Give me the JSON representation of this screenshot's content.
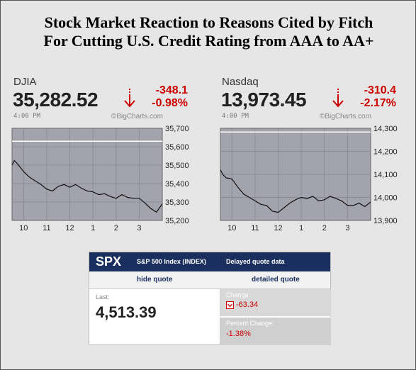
{
  "title_line1": "Stock Market Reaction to Reasons Cited by Fitch",
  "title_line2": "For Cutting U.S. Credit Rating from AAA to AA+",
  "colors": {
    "down": "#cc0000",
    "chart_bg": "#a3a3ad",
    "spx_header": "#1b2f5e"
  },
  "djia": {
    "name": "DJIA",
    "value": "35,282.52",
    "change": "-348.1",
    "pct_change": "-0.98%",
    "time_label": "4:00 PM",
    "credit": "©BigCharts.com"
  },
  "nasdaq": {
    "name": "Nasdaq",
    "value": "13,973.45",
    "change": "-310.4",
    "pct_change": "-2.17%",
    "time_label": "4:00 PM",
    "credit": "©BigCharts.com"
  },
  "chart_data": [
    {
      "type": "line",
      "series_for": "DJIA",
      "x_ticks": [
        "10",
        "11",
        "12",
        "1",
        "2",
        "3"
      ],
      "y_ticks": [
        "35,700",
        "35,600",
        "35,500",
        "35,400",
        "35,300",
        "35,200"
      ],
      "ylim": [
        35200,
        35700
      ],
      "reference_line": 35630,
      "x": [
        9.5,
        9.6,
        9.75,
        10.0,
        10.25,
        10.5,
        10.75,
        11.0,
        11.25,
        11.5,
        11.75,
        12.0,
        12.25,
        12.5,
        12.75,
        13.0,
        13.25,
        13.5,
        13.75,
        14.0,
        14.25,
        14.5,
        14.75,
        15.0,
        15.25,
        15.5,
        15.75,
        16.0
      ],
      "values": [
        35500,
        35525,
        35505,
        35465,
        35435,
        35415,
        35395,
        35370,
        35360,
        35385,
        35395,
        35380,
        35395,
        35375,
        35360,
        35355,
        35340,
        35345,
        35330,
        35320,
        35340,
        35325,
        35320,
        35320,
        35295,
        35265,
        35245,
        35290
      ]
    },
    {
      "type": "line",
      "series_for": "Nasdaq",
      "x_ticks": [
        "10",
        "11",
        "12",
        "1",
        "2",
        "3"
      ],
      "y_ticks": [
        "14,300",
        "14,200",
        "14,100",
        "14,000",
        "13,900"
      ],
      "ylim": [
        13900,
        14300
      ],
      "reference_line": 14284,
      "x": [
        9.5,
        9.6,
        9.75,
        10.0,
        10.25,
        10.5,
        10.75,
        11.0,
        11.25,
        11.5,
        11.75,
        12.0,
        12.25,
        12.5,
        12.75,
        13.0,
        13.25,
        13.5,
        13.75,
        14.0,
        14.25,
        14.5,
        14.75,
        15.0,
        15.25,
        15.5,
        15.75,
        16.0
      ],
      "values": [
        14120,
        14100,
        14085,
        14080,
        14045,
        14015,
        14000,
        13985,
        13970,
        13965,
        13940,
        13935,
        13955,
        13975,
        13990,
        14000,
        13995,
        14005,
        13985,
        13990,
        14005,
        13995,
        13985,
        13965,
        13965,
        13975,
        13960,
        13980
      ]
    }
  ],
  "spx": {
    "symbol": "SPX",
    "name": "S&P 500 Index (INDEX)",
    "delay": "Delayed quote data",
    "hide_link": "hide quote",
    "detail_link": "detailed quote",
    "last_label": "Last:",
    "last_value": "4,513.39",
    "change_label": "Change:",
    "change_value": "-63.34",
    "pct_label": "Percent Change:",
    "pct_value": "-1.38%"
  }
}
